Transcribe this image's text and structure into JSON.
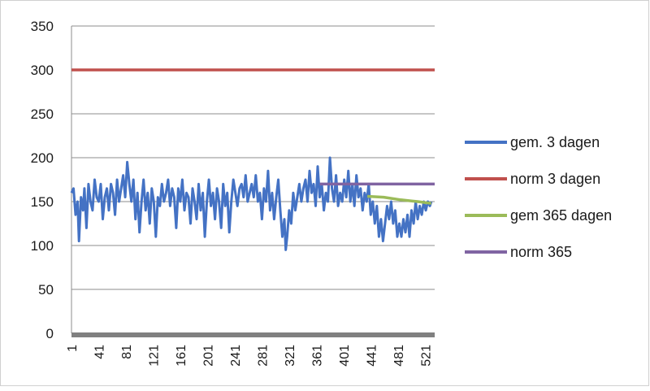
{
  "chart_data": {
    "type": "line",
    "title": "",
    "xlabel": "",
    "ylabel": "",
    "xlim": [
      1,
      535
    ],
    "ylim": [
      0,
      350
    ],
    "y_ticks": [
      0,
      50,
      100,
      150,
      200,
      250,
      300,
      350
    ],
    "x_ticks": [
      1,
      41,
      81,
      121,
      161,
      201,
      241,
      281,
      321,
      361,
      401,
      441,
      481,
      521
    ],
    "grid": "horizontal",
    "legend_position": "right",
    "series": [
      {
        "name": "gem. 3 dagen",
        "color": "#4472c4",
        "points": [
          [
            1,
            160
          ],
          [
            4,
            165
          ],
          [
            7,
            135
          ],
          [
            10,
            150
          ],
          [
            12,
            105
          ],
          [
            15,
            155
          ],
          [
            18,
            140
          ],
          [
            20,
            165
          ],
          [
            23,
            120
          ],
          [
            26,
            170
          ],
          [
            29,
            150
          ],
          [
            32,
            140
          ],
          [
            35,
            175
          ],
          [
            38,
            155
          ],
          [
            41,
            150
          ],
          [
            44,
            170
          ],
          [
            47,
            130
          ],
          [
            50,
            155
          ],
          [
            53,
            165
          ],
          [
            56,
            140
          ],
          [
            59,
            170
          ],
          [
            62,
            160
          ],
          [
            65,
            135
          ],
          [
            68,
            175
          ],
          [
            71,
            150
          ],
          [
            74,
            165
          ],
          [
            77,
            180
          ],
          [
            80,
            155
          ],
          [
            83,
            195
          ],
          [
            86,
            170
          ],
          [
            89,
            150
          ],
          [
            92,
            175
          ],
          [
            95,
            130
          ],
          [
            98,
            160
          ],
          [
            101,
            115
          ],
          [
            104,
            150
          ],
          [
            107,
            175
          ],
          [
            110,
            140
          ],
          [
            113,
            160
          ],
          [
            116,
            125
          ],
          [
            119,
            165
          ],
          [
            122,
            150
          ],
          [
            125,
            110
          ],
          [
            128,
            155
          ],
          [
            131,
            145
          ],
          [
            134,
            170
          ],
          [
            137,
            150
          ],
          [
            140,
            160
          ],
          [
            143,
            175
          ],
          [
            146,
            145
          ],
          [
            149,
            165
          ],
          [
            152,
            155
          ],
          [
            155,
            120
          ],
          [
            158,
            165
          ],
          [
            161,
            150
          ],
          [
            164,
            175
          ],
          [
            167,
            140
          ],
          [
            170,
            160
          ],
          [
            173,
            155
          ],
          [
            176,
            125
          ],
          [
            179,
            165
          ],
          [
            182,
            150
          ],
          [
            185,
            130
          ],
          [
            188,
            170
          ],
          [
            191,
            140
          ],
          [
            194,
            160
          ],
          [
            197,
            110
          ],
          [
            200,
            150
          ],
          [
            203,
            175
          ],
          [
            206,
            145
          ],
          [
            209,
            160
          ],
          [
            212,
            130
          ],
          [
            215,
            165
          ],
          [
            218,
            150
          ],
          [
            221,
            120
          ],
          [
            224,
            170
          ],
          [
            227,
            145
          ],
          [
            230,
            160
          ],
          [
            233,
            115
          ],
          [
            236,
            150
          ],
          [
            239,
            175
          ],
          [
            242,
            160
          ],
          [
            245,
            145
          ],
          [
            248,
            165
          ],
          [
            251,
            170
          ],
          [
            254,
            155
          ],
          [
            257,
            180
          ],
          [
            260,
            150
          ],
          [
            263,
            160
          ],
          [
            266,
            170
          ],
          [
            269,
            155
          ],
          [
            272,
            180
          ],
          [
            275,
            150
          ],
          [
            278,
            160
          ],
          [
            281,
            130
          ],
          [
            284,
            165
          ],
          [
            287,
            150
          ],
          [
            290,
            185
          ],
          [
            293,
            140
          ],
          [
            296,
            160
          ],
          [
            299,
            130
          ],
          [
            302,
            155
          ],
          [
            305,
            175
          ],
          [
            308,
            140
          ],
          [
            311,
            110
          ],
          [
            314,
            130
          ],
          [
            316,
            95
          ],
          [
            318,
            110
          ],
          [
            321,
            140
          ],
          [
            324,
            125
          ],
          [
            327,
            160
          ],
          [
            330,
            140
          ],
          [
            333,
            155
          ],
          [
            336,
            170
          ],
          [
            339,
            150
          ],
          [
            342,
            165
          ],
          [
            345,
            175
          ],
          [
            348,
            150
          ],
          [
            351,
            185
          ],
          [
            354,
            160
          ],
          [
            357,
            170
          ],
          [
            360,
            145
          ],
          [
            363,
            190
          ],
          [
            366,
            155
          ],
          [
            369,
            170
          ],
          [
            372,
            140
          ],
          [
            375,
            160
          ],
          [
            378,
            150
          ],
          [
            381,
            200
          ],
          [
            384,
            165
          ],
          [
            387,
            150
          ],
          [
            390,
            180
          ],
          [
            393,
            145
          ],
          [
            396,
            160
          ],
          [
            399,
            150
          ],
          [
            402,
            175
          ],
          [
            405,
            155
          ],
          [
            408,
            185
          ],
          [
            411,
            150
          ],
          [
            414,
            170
          ],
          [
            417,
            145
          ],
          [
            420,
            180
          ],
          [
            423,
            155
          ],
          [
            426,
            165
          ],
          [
            429,
            140
          ],
          [
            432,
            160
          ],
          [
            435,
            150
          ],
          [
            438,
            170
          ],
          [
            441,
            135
          ],
          [
            444,
            150
          ],
          [
            447,
            125
          ],
          [
            450,
            145
          ],
          [
            453,
            110
          ],
          [
            456,
            130
          ],
          [
            459,
            105
          ],
          [
            462,
            125
          ],
          [
            465,
            145
          ],
          [
            468,
            130
          ],
          [
            471,
            150
          ],
          [
            474,
            125
          ],
          [
            477,
            140
          ],
          [
            480,
            110
          ],
          [
            483,
            125
          ],
          [
            486,
            110
          ],
          [
            489,
            130
          ],
          [
            492,
            115
          ],
          [
            495,
            135
          ],
          [
            498,
            110
          ],
          [
            501,
            140
          ],
          [
            504,
            125
          ],
          [
            507,
            150
          ],
          [
            510,
            130
          ],
          [
            513,
            145
          ],
          [
            516,
            135
          ],
          [
            519,
            150
          ],
          [
            522,
            140
          ],
          [
            525,
            150
          ],
          [
            528,
            145
          ],
          [
            530,
            150
          ]
        ]
      },
      {
        "name": "norm 3 dagen",
        "color": "#c0504d",
        "points": [
          [
            1,
            300
          ],
          [
            535,
            300
          ]
        ]
      },
      {
        "name": "gem 365 dagen",
        "color": "#9bbb59",
        "points": [
          [
            436,
            156
          ],
          [
            460,
            155
          ],
          [
            485,
            152
          ],
          [
            510,
            150
          ],
          [
            530,
            148
          ]
        ]
      },
      {
        "name": "norm 365",
        "color": "#8064a2",
        "points": [
          [
            366,
            170
          ],
          [
            535,
            170
          ]
        ]
      }
    ]
  }
}
